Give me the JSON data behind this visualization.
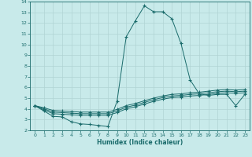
{
  "xlabel": "Humidex (Indice chaleur)",
  "xlim": [
    -0.5,
    23.5
  ],
  "ylim": [
    2,
    14
  ],
  "yticks": [
    2,
    3,
    4,
    5,
    6,
    7,
    8,
    9,
    10,
    11,
    12,
    13,
    14
  ],
  "xticks": [
    0,
    1,
    2,
    3,
    4,
    5,
    6,
    7,
    8,
    9,
    10,
    11,
    12,
    13,
    14,
    15,
    16,
    17,
    18,
    19,
    20,
    21,
    22,
    23
  ],
  "background_color": "#c8eaea",
  "grid_color": "#b0d4d4",
  "line_color": "#1a6b6b",
  "lines": [
    {
      "x": [
        0,
        1,
        2,
        3,
        4,
        5,
        6,
        7,
        8,
        9,
        10,
        11,
        12,
        13,
        14,
        15,
        16,
        17,
        18,
        19,
        20,
        21,
        22,
        23
      ],
      "y": [
        4.3,
        3.8,
        3.3,
        3.25,
        2.8,
        2.6,
        2.55,
        2.45,
        2.35,
        4.7,
        10.7,
        12.2,
        13.6,
        13.05,
        13.05,
        12.4,
        10.1,
        6.7,
        5.4,
        5.25,
        5.35,
        5.35,
        4.3,
        5.35
      ]
    },
    {
      "x": [
        0,
        1,
        2,
        3,
        4,
        5,
        6,
        7,
        8,
        9,
        10,
        11,
        12,
        13,
        14,
        15,
        16,
        17,
        18,
        19,
        20,
        21,
        22,
        23
      ],
      "y": [
        4.3,
        3.9,
        3.55,
        3.5,
        3.45,
        3.4,
        3.4,
        3.4,
        3.4,
        3.65,
        4.0,
        4.2,
        4.45,
        4.7,
        4.9,
        5.05,
        5.1,
        5.2,
        5.25,
        5.35,
        5.45,
        5.5,
        5.45,
        5.5
      ]
    },
    {
      "x": [
        0,
        1,
        2,
        3,
        4,
        5,
        6,
        7,
        8,
        9,
        10,
        11,
        12,
        13,
        14,
        15,
        16,
        17,
        18,
        19,
        20,
        21,
        22,
        23
      ],
      "y": [
        4.3,
        4.0,
        3.7,
        3.65,
        3.6,
        3.55,
        3.55,
        3.55,
        3.55,
        3.8,
        4.15,
        4.35,
        4.6,
        4.85,
        5.05,
        5.2,
        5.25,
        5.35,
        5.4,
        5.5,
        5.6,
        5.65,
        5.6,
        5.65
      ]
    },
    {
      "x": [
        0,
        1,
        2,
        3,
        4,
        5,
        6,
        7,
        8,
        9,
        10,
        11,
        12,
        13,
        14,
        15,
        16,
        17,
        18,
        19,
        20,
        21,
        22,
        23
      ],
      "y": [
        4.3,
        4.1,
        3.85,
        3.8,
        3.75,
        3.7,
        3.7,
        3.7,
        3.7,
        3.95,
        4.3,
        4.5,
        4.75,
        5.0,
        5.2,
        5.35,
        5.4,
        5.5,
        5.55,
        5.65,
        5.75,
        5.8,
        5.75,
        5.8
      ]
    }
  ]
}
